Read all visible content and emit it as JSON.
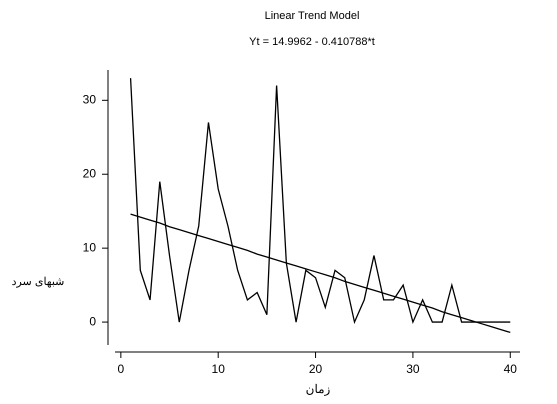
{
  "chart_data": {
    "type": "line",
    "title": "Linear Trend Model",
    "subtitle": "Yt = 14.9962 - 0.410788*t",
    "x_label": "زمان",
    "y_label": "شبهای سرد",
    "x": [
      1,
      2,
      3,
      4,
      5,
      6,
      7,
      8,
      9,
      10,
      11,
      12,
      13,
      14,
      15,
      16,
      17,
      18,
      19,
      20,
      21,
      22,
      23,
      24,
      25,
      26,
      27,
      28,
      29,
      30,
      31,
      32,
      33,
      34,
      35,
      36,
      37,
      38,
      39,
      40
    ],
    "series": [
      {
        "color": "#000000",
        "values": [
          33,
          7,
          3,
          19,
          9,
          0,
          7,
          13,
          27,
          18,
          13,
          7,
          3,
          4,
          1,
          32,
          8,
          0,
          7,
          6,
          2,
          7,
          6,
          0,
          3,
          9,
          3,
          3,
          5,
          0,
          3,
          0,
          0,
          5,
          0,
          0,
          0,
          0,
          0,
          0
        ]
      },
      {
        "color": "#000000",
        "values": [
          14.6,
          14.2,
          13.8,
          13.4,
          12.9,
          12.5,
          12.1,
          11.7,
          11.3,
          10.9,
          10.5,
          10.1,
          9.7,
          9.2,
          8.8,
          8.4,
          8.0,
          7.6,
          7.2,
          6.8,
          6.4,
          6.0,
          5.5,
          5.1,
          4.7,
          4.3,
          3.9,
          3.5,
          3.1,
          2.7,
          2.3,
          1.9,
          1.4,
          1.0,
          0.6,
          0.2,
          -0.2,
          -0.6,
          -1.0,
          -1.4
        ]
      }
    ],
    "xlim": [
      -0.6,
      41
    ],
    "ylim": [
      -3.1,
      34.1
    ],
    "xticks": [
      0,
      10,
      20,
      30,
      40
    ],
    "yticks": [
      0,
      10,
      20,
      30
    ]
  }
}
